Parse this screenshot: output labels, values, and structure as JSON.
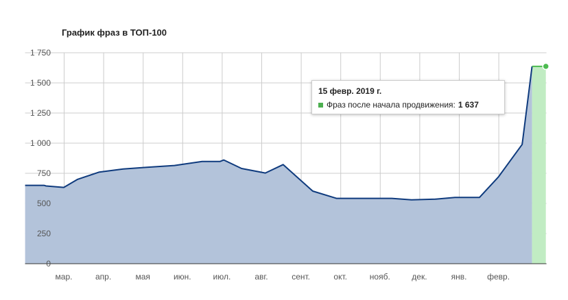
{
  "chart_data": {
    "type": "area",
    "title": "График фраз в ТОП-100",
    "xlabel": "",
    "ylabel": "",
    "ylim": [
      0,
      1750
    ],
    "y_ticks": [
      0,
      250,
      500,
      750,
      1000,
      1250,
      1500,
      1750
    ],
    "y_tick_labels": [
      "0",
      "250",
      "500",
      "750",
      "1 000",
      "1 250",
      "1 500",
      "1 750"
    ],
    "x_tick_labels": [
      "мар.",
      "апр.",
      "мая",
      "июн.",
      "июл.",
      "авг.",
      "сент.",
      "окт.",
      "нояб.",
      "дек.",
      "янв.",
      "февр."
    ],
    "grid": true,
    "x_unit": "месяцы с начала периода",
    "xlim": [
      -0.98,
      11.85
    ],
    "series": [
      {
        "name": "Фраз после начала продвижения",
        "area_color": "#b3c3da",
        "line_color": "#0e3a7d",
        "x": [
          -0.98,
          -0.5,
          -0.45,
          0.0,
          0.35,
          0.9,
          1.5,
          2.1,
          2.8,
          3.5,
          3.95,
          4.05,
          4.5,
          5.1,
          5.55,
          6.3,
          6.9,
          7.5,
          8.3,
          8.8,
          9.4,
          9.9,
          10.48,
          10.52,
          11.0,
          11.6,
          11.85
        ],
        "values": [
          650,
          650,
          645,
          633,
          700,
          760,
          785,
          800,
          815,
          848,
          848,
          860,
          790,
          752,
          822,
          602,
          542,
          542,
          542,
          530,
          535,
          550,
          550,
          550,
          720,
          990,
          1637
        ]
      },
      {
        "name": "Фраз после начала продвижения",
        "area_color": "#c1ecc3",
        "line_color": "#4cbb50",
        "x": [
          11.85,
          12.2
        ],
        "values": [
          1637,
          1637
        ]
      }
    ],
    "highlight_point": {
      "x": 12.2,
      "value": 1637,
      "color": "#4cbb50"
    },
    "tooltip": {
      "date": "15 февр. 2019 г.",
      "series_label": "Фраз после начала продвижения:",
      "value": "1 637",
      "swatch_color": "#4caf50"
    }
  }
}
